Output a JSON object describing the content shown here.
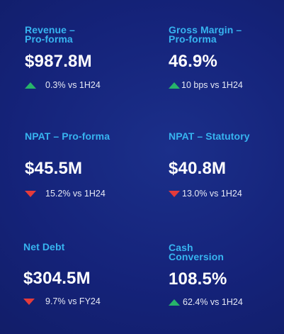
{
  "metrics": [
    {
      "label": "Revenue –\nPro-forma",
      "value": "$987.8M",
      "direction": "up",
      "change": "0.3% vs 1H24"
    },
    {
      "label": "Gross Margin –\nPro-forma",
      "value": "46.9%",
      "direction": "up",
      "change": "10 bps vs 1H24"
    },
    {
      "label": "NPAT – Pro-forma",
      "value": "$45.5M",
      "direction": "down",
      "change": "15.2% vs 1H24"
    },
    {
      "label": "NPAT – Statutory",
      "value": "$40.8M",
      "direction": "down",
      "change": "13.0% vs 1H24"
    },
    {
      "label": "Net Debt",
      "value": "$304.5M",
      "direction": "down",
      "change": "9.7% vs FY24"
    },
    {
      "label": "Cash\nConversion",
      "value": "108.5%",
      "direction": "up",
      "change": "62.4% vs 1H24"
    }
  ],
  "colors": {
    "label": "#37b4f0",
    "up_arrow": "#27b46a",
    "down_arrow": "#e53b3b"
  }
}
